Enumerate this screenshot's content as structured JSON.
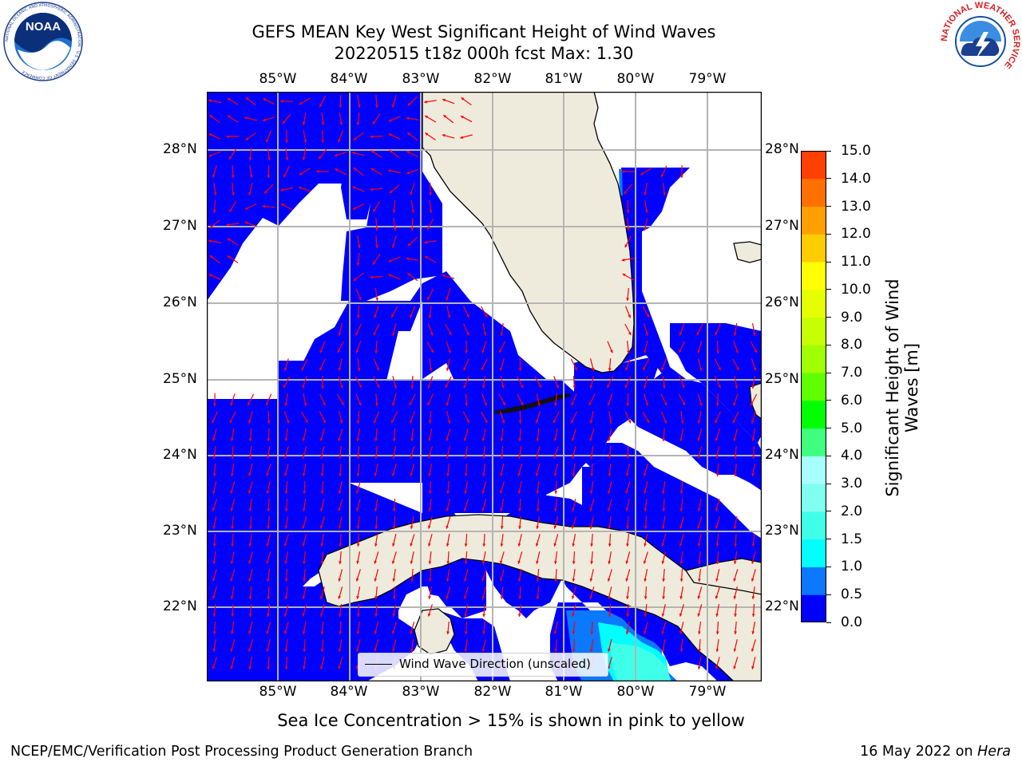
{
  "title": {
    "line1": "GEFS MEAN Key West Significant Height of Wind Waves",
    "line2": "20220515 t18z 000h fcst   Max: 1.30"
  },
  "map": {
    "lon_labels": [
      "85°W",
      "84°W",
      "83°W",
      "82°W",
      "81°W",
      "80°W",
      "79°W"
    ],
    "lat_labels": [
      "28°N",
      "27°N",
      "26°N",
      "25°N",
      "24°N",
      "23°N",
      "22°N"
    ],
    "ocean_fill_color": "#0000ff",
    "land_color": "#efebdc",
    "arrow_color": "#ff0000",
    "grid_color": "#b4b4b4"
  },
  "legend": {
    "label": "Wind Wave Direction (unscaled)"
  },
  "colorbar": {
    "label_line1": "Significant Height of Wind",
    "label_line2": "Waves [m]",
    "ticks": [
      "0.0",
      "0.5",
      "1.0",
      "1.5",
      "2.0",
      "3.0",
      "4.0",
      "5.0",
      "6.0",
      "7.0",
      "8.0",
      "9.0",
      "10.0",
      "11.0",
      "12.0",
      "13.0",
      "14.0",
      "15.0"
    ],
    "colors": [
      "#0000ff",
      "#0a78ff",
      "#00ffff",
      "#40ffe8",
      "#80fff0",
      "#a8ffff",
      "#40ff80",
      "#00ff00",
      "#60ff00",
      "#a0ff00",
      "#c8ff00",
      "#e6ff00",
      "#ffff00",
      "#ffcc00",
      "#ffa000",
      "#ff7000",
      "#ff4000",
      "#ff0000"
    ]
  },
  "note": "Sea Ice Concentration > 15% is shown in pink to yellow",
  "footer": {
    "left": "NCEP/EMC/Verification Post Processing Product Generation Branch",
    "right_prefix": "16 May 2022 on ",
    "right_host": "Hera"
  },
  "logos": {
    "noaa": "NOAA",
    "noaa_ring": "NATIONAL OCEANIC AND ATMOSPHERIC ADMINISTRATION · U.S. DEPARTMENT OF COMMERCE",
    "nws_ring": "NATIONAL WEATHER SERVICE"
  }
}
